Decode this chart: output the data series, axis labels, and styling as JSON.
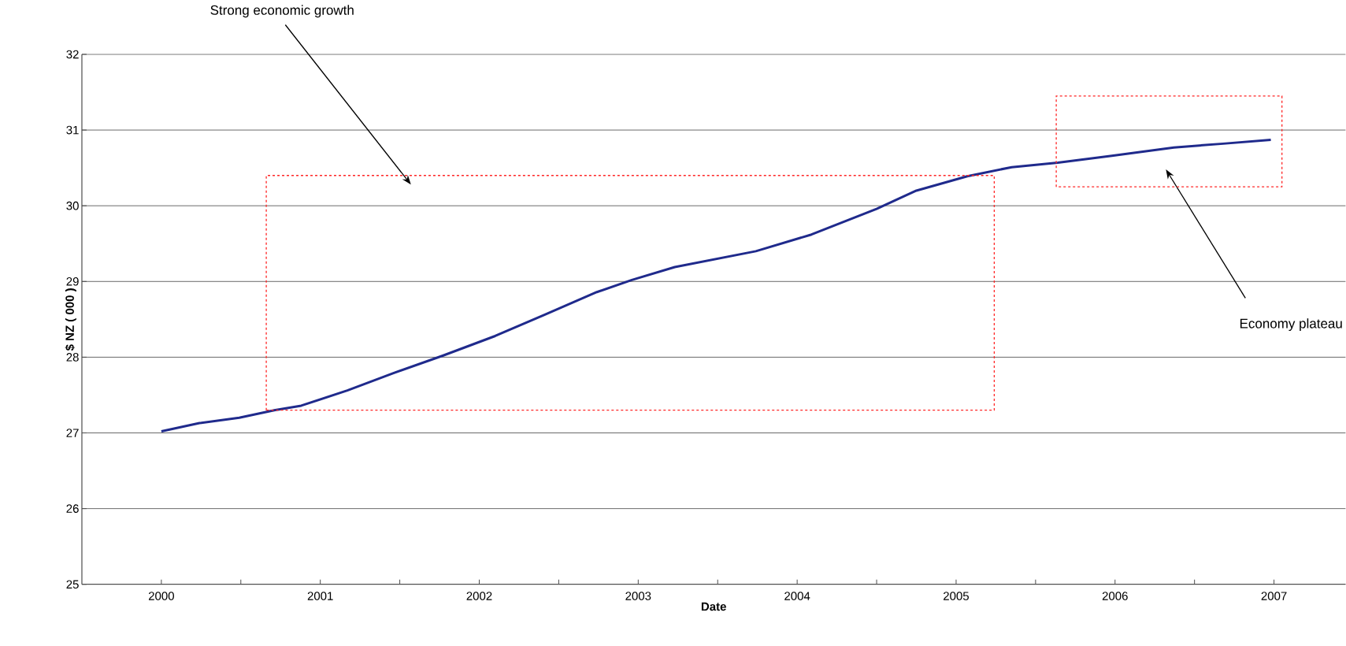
{
  "chart_data": {
    "type": "line",
    "xlabel": "Date",
    "ylabel": "$ NZ ( 000 )",
    "annotations": [
      "Strong economic growth",
      "Economy plateau"
    ],
    "x": [
      2000,
      2000.24,
      2000.49,
      2000.71,
      2000.88,
      2001.17,
      2001.46,
      2001.77,
      2002.1,
      2002.41,
      2002.74,
      2002.96,
      2003.23,
      2003.74,
      2004.09,
      2004.5,
      2004.75,
      2005.07,
      2005.35,
      2005.64,
      2005.98,
      2006.37,
      2006.68,
      2006.98
    ],
    "series": [
      {
        "color": "#1f2a8c",
        "values": [
          27.02,
          27.13,
          27.2,
          27.3,
          27.36,
          27.56,
          27.79,
          28.02,
          28.28,
          28.56,
          28.86,
          29.02,
          29.19,
          29.4,
          29.62,
          29.96,
          30.2,
          30.39,
          30.51,
          30.57,
          30.66,
          30.77,
          30.82,
          30.87
        ]
      }
    ],
    "xlim": [
      1999.5,
      2007.45
    ],
    "ylim": [
      25,
      32
    ],
    "xticks": [
      2000,
      {
        "value": 2000.5,
        "label": null
      },
      2001,
      {
        "value": 2001.5,
        "label": null
      },
      2002,
      {
        "value": 2002.5,
        "label": null
      },
      2003,
      {
        "value": 2003.5,
        "label": null
      },
      2004,
      {
        "value": 2004.5,
        "label": null
      },
      2005,
      {
        "value": 2005.5,
        "label": null
      },
      2006,
      {
        "value": 2006.5,
        "label": null
      },
      2007
    ],
    "yticks": [
      25,
      26,
      27,
      28,
      29,
      30,
      31,
      32
    ],
    "grid": "y",
    "marker": "none",
    "line_style": "solid"
  }
}
